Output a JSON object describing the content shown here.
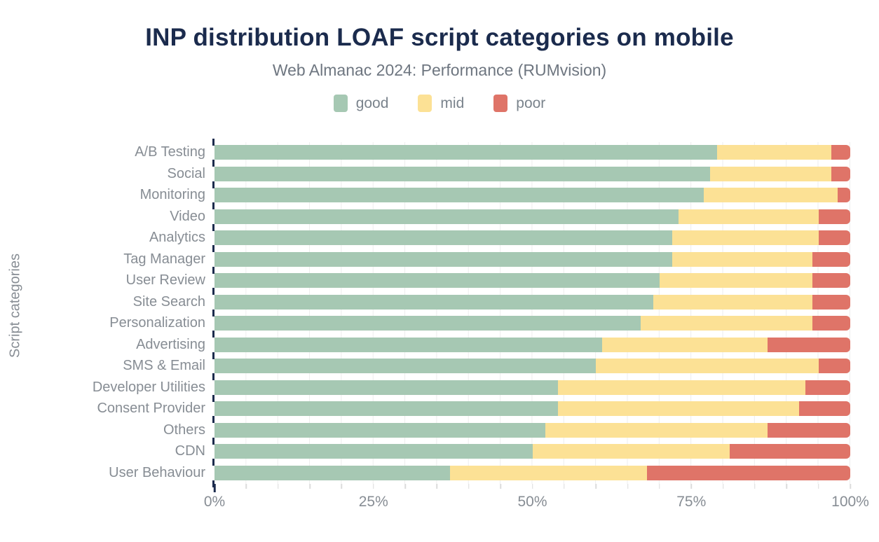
{
  "title": "INP distribution LOAF script categories on mobile",
  "subtitle": "Web Almanac 2024: Performance (RUMvision)",
  "colors": {
    "good": "#a6c8b3",
    "mid": "#fce195",
    "poor": "#df7468",
    "title_navy": "#1b2b4d",
    "axis_gray": "#878d94"
  },
  "chart_data": {
    "type": "bar",
    "orientation": "horizontal",
    "stacked": true,
    "title": "INP distribution LOAF script categories on mobile",
    "subtitle": "Web Almanac 2024: Performance (RUMvision)",
    "xlabel": "",
    "ylabel": "Script categories",
    "xlim": [
      0,
      100
    ],
    "x_ticks": [
      "0%",
      "25%",
      "50%",
      "75%",
      "100%"
    ],
    "grid": "vertical every 5%",
    "legend_position": "top",
    "categories": [
      "A/B Testing",
      "Social",
      "Monitoring",
      "Video",
      "Analytics",
      "Tag Manager",
      "User Review",
      "Site Search",
      "Personalization",
      "Advertising",
      "SMS & Email",
      "Developer Utilities",
      "Consent Provider",
      "Others",
      "CDN",
      "User Behaviour"
    ],
    "series": [
      {
        "name": "good",
        "color": "#a6c8b3",
        "values": [
          79,
          78,
          77,
          73,
          72,
          72,
          70,
          69,
          67,
          61,
          60,
          54,
          54,
          52,
          50,
          37
        ]
      },
      {
        "name": "mid",
        "color": "#fce195",
        "values": [
          18,
          19,
          21,
          22,
          23,
          22,
          24,
          25,
          27,
          26,
          35,
          39,
          38,
          35,
          31,
          31
        ]
      },
      {
        "name": "poor",
        "color": "#df7468",
        "values": [
          3,
          3,
          2,
          5,
          5,
          6,
          6,
          6,
          6,
          13,
          5,
          7,
          8,
          13,
          19,
          32
        ]
      }
    ]
  }
}
